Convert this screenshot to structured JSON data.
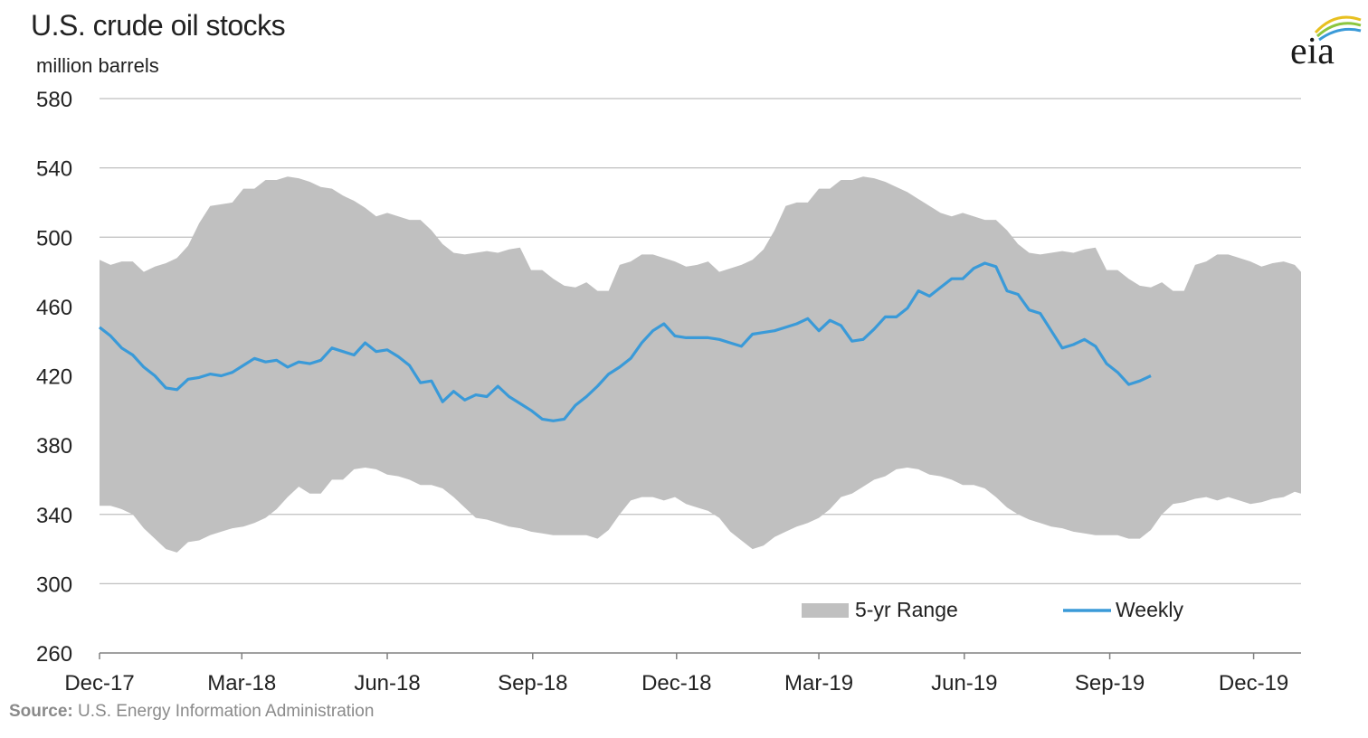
{
  "source_prefix": "Source:",
  "source_text": "U.S. Energy Information Administration",
  "logo_text": "eia",
  "colors": {
    "range_fill": "#c0c0c0",
    "weekly_line": "#3a9ad8",
    "grid": "#bfbfbf",
    "axis": "#808080",
    "logo_arc_yellow": "#e8c020",
    "logo_arc_green": "#8cc63f",
    "logo_arc_blue": "#3a9ad8"
  },
  "chart_data": {
    "type": "area",
    "title": "U.S. crude oil stocks",
    "ylabel": "million barrels",
    "ylim": [
      260,
      580
    ],
    "yticks": [
      580,
      540,
      500,
      460,
      420,
      380,
      340,
      300,
      260
    ],
    "xlim": [
      "2017-12-01",
      "2019-12-31"
    ],
    "xticks": [
      "Dec-17",
      "Mar-18",
      "Jun-18",
      "Sep-18",
      "Dec-18",
      "Mar-19",
      "Jun-19",
      "Sep-19",
      "Dec-19"
    ],
    "grid": true,
    "legend_position": "bottom-right",
    "series": [
      {
        "name": "5-yr Range",
        "kind": "band",
        "x": [
          "2017-12-01",
          "2017-12-08",
          "2017-12-15",
          "2017-12-22",
          "2017-12-29",
          "2018-01-05",
          "2018-01-12",
          "2018-01-19",
          "2018-01-26",
          "2018-02-02",
          "2018-02-09",
          "2018-02-16",
          "2018-02-23",
          "2018-03-02",
          "2018-03-09",
          "2018-03-16",
          "2018-03-23",
          "2018-03-30",
          "2018-04-06",
          "2018-04-13",
          "2018-04-20",
          "2018-04-27",
          "2018-05-04",
          "2018-05-11",
          "2018-05-18",
          "2018-05-25",
          "2018-06-01",
          "2018-06-08",
          "2018-06-15",
          "2018-06-22",
          "2018-06-29",
          "2018-07-06",
          "2018-07-13",
          "2018-07-20",
          "2018-07-27",
          "2018-08-03",
          "2018-08-10",
          "2018-08-17",
          "2018-08-24",
          "2018-08-31",
          "2018-09-07",
          "2018-09-14",
          "2018-09-21",
          "2018-09-28",
          "2018-10-05",
          "2018-10-12",
          "2018-10-19",
          "2018-10-26",
          "2018-11-02",
          "2018-11-09",
          "2018-11-16",
          "2018-11-23",
          "2018-11-30",
          "2018-12-07",
          "2018-12-14",
          "2018-12-21",
          "2018-12-28",
          "2019-01-04",
          "2019-01-11",
          "2019-01-18",
          "2019-01-25",
          "2019-02-01",
          "2019-02-08",
          "2019-02-15",
          "2019-02-22",
          "2019-03-01",
          "2019-03-08",
          "2019-03-15",
          "2019-03-22",
          "2019-03-29",
          "2019-04-05",
          "2019-04-12",
          "2019-04-19",
          "2019-04-26",
          "2019-05-03",
          "2019-05-10",
          "2019-05-17",
          "2019-05-24",
          "2019-05-31",
          "2019-06-07",
          "2019-06-14",
          "2019-06-21",
          "2019-06-28",
          "2019-07-05",
          "2019-07-12",
          "2019-07-19",
          "2019-07-26",
          "2019-08-02",
          "2019-08-09",
          "2019-08-16",
          "2019-08-23",
          "2019-08-30",
          "2019-09-06",
          "2019-09-13",
          "2019-09-20",
          "2019-09-27",
          "2019-10-04",
          "2019-10-11",
          "2019-10-18",
          "2019-10-25",
          "2019-11-01",
          "2019-11-08",
          "2019-11-15",
          "2019-11-22",
          "2019-11-29",
          "2019-12-06",
          "2019-12-13",
          "2019-12-20",
          "2019-12-27",
          "2019-12-31"
        ],
        "high": [
          487,
          484,
          486,
          486,
          480,
          483,
          485,
          488,
          495,
          508,
          518,
          519,
          520,
          528,
          528,
          533,
          533,
          535,
          534,
          532,
          529,
          528,
          524,
          521,
          517,
          512,
          514,
          512,
          510,
          510,
          504,
          496,
          491,
          490,
          491,
          492,
          491,
          493,
          494,
          481,
          481,
          476,
          472,
          471,
          474,
          469,
          469,
          484,
          486,
          490,
          490,
          488,
          486,
          483,
          484,
          486,
          480,
          482,
          484,
          487,
          493,
          504,
          518,
          520,
          520,
          528,
          528,
          533,
          533,
          535,
          534,
          532,
          529,
          526,
          522,
          518,
          514,
          512,
          514,
          512,
          510,
          510,
          504,
          496,
          491,
          490,
          491,
          492,
          491,
          493,
          494,
          481,
          481,
          476,
          472,
          471,
          474,
          469,
          469,
          484,
          486,
          490,
          490,
          488,
          486,
          483,
          485,
          486,
          484,
          480
        ],
        "low": [
          345,
          345,
          343,
          340,
          332,
          326,
          320,
          318,
          324,
          325,
          328,
          330,
          332,
          333,
          335,
          338,
          343,
          350,
          356,
          352,
          352,
          360,
          360,
          366,
          367,
          366,
          363,
          362,
          360,
          357,
          357,
          355,
          350,
          344,
          338,
          337,
          335,
          333,
          332,
          330,
          329,
          328,
          328,
          328,
          328,
          326,
          331,
          340,
          348,
          350,
          350,
          348,
          350,
          346,
          344,
          342,
          338,
          330,
          325,
          320,
          322,
          327,
          330,
          333,
          335,
          338,
          343,
          350,
          352,
          356,
          360,
          362,
          366,
          367,
          366,
          363,
          362,
          360,
          357,
          357,
          355,
          350,
          344,
          340,
          337,
          335,
          333,
          332,
          330,
          329,
          328,
          328,
          328,
          326,
          326,
          331,
          340,
          346,
          347,
          349,
          350,
          348,
          350,
          348,
          346,
          347,
          349,
          350,
          353,
          352
        ]
      },
      {
        "name": "Weekly",
        "kind": "line",
        "x": [
          "2017-12-01",
          "2017-12-08",
          "2017-12-15",
          "2017-12-22",
          "2017-12-29",
          "2018-01-05",
          "2018-01-12",
          "2018-01-19",
          "2018-01-26",
          "2018-02-02",
          "2018-02-09",
          "2018-02-16",
          "2018-02-23",
          "2018-03-02",
          "2018-03-09",
          "2018-03-16",
          "2018-03-23",
          "2018-03-30",
          "2018-04-06",
          "2018-04-13",
          "2018-04-20",
          "2018-04-27",
          "2018-05-04",
          "2018-05-11",
          "2018-05-18",
          "2018-05-25",
          "2018-06-01",
          "2018-06-08",
          "2018-06-15",
          "2018-06-22",
          "2018-06-29",
          "2018-07-06",
          "2018-07-13",
          "2018-07-20",
          "2018-07-27",
          "2018-08-03",
          "2018-08-10",
          "2018-08-17",
          "2018-08-24",
          "2018-08-31",
          "2018-09-07",
          "2018-09-14",
          "2018-09-21",
          "2018-09-28",
          "2018-10-05",
          "2018-10-12",
          "2018-10-19",
          "2018-10-26",
          "2018-11-02",
          "2018-11-09",
          "2018-11-16",
          "2018-11-23",
          "2018-11-30",
          "2018-12-07",
          "2018-12-14",
          "2018-12-21",
          "2018-12-28",
          "2019-01-04",
          "2019-01-11",
          "2019-01-18",
          "2019-01-25",
          "2019-02-01",
          "2019-02-08",
          "2019-02-15",
          "2019-02-22",
          "2019-03-01",
          "2019-03-08",
          "2019-03-15",
          "2019-03-22",
          "2019-03-29",
          "2019-04-05",
          "2019-04-12",
          "2019-04-19",
          "2019-04-26",
          "2019-05-03",
          "2019-05-10",
          "2019-05-17",
          "2019-05-24",
          "2019-05-31",
          "2019-06-07",
          "2019-06-14",
          "2019-06-21",
          "2019-06-28",
          "2019-07-05",
          "2019-07-12",
          "2019-07-19",
          "2019-07-26",
          "2019-08-02",
          "2019-08-09",
          "2019-08-16",
          "2019-08-23",
          "2019-08-30",
          "2019-09-06",
          "2019-09-13",
          "2019-09-20",
          "2019-09-27"
        ],
        "values": [
          448,
          443,
          436,
          432,
          425,
          420,
          413,
          412,
          418,
          419,
          421,
          420,
          422,
          426,
          430,
          428,
          429,
          425,
          428,
          427,
          429,
          436,
          434,
          432,
          439,
          434,
          435,
          431,
          426,
          416,
          417,
          405,
          411,
          406,
          409,
          408,
          414,
          408,
          404,
          400,
          395,
          394,
          395,
          403,
          408,
          414,
          421,
          425,
          430,
          439,
          446,
          450,
          443,
          442,
          442,
          442,
          441,
          439,
          437,
          444,
          445,
          446,
          448,
          450,
          453,
          446,
          452,
          449,
          440,
          441,
          447,
          454,
          454,
          459,
          469,
          466,
          471,
          476,
          476,
          482,
          485,
          483,
          469,
          467,
          458,
          456,
          446,
          436,
          438,
          441,
          437,
          427,
          422,
          415,
          417,
          420
        ]
      }
    ]
  }
}
